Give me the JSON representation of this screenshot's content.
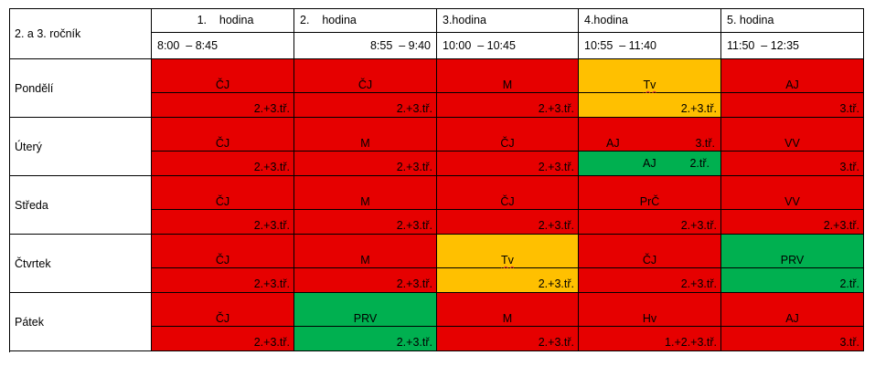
{
  "table": {
    "corner_label": "2. a 3. ročník",
    "periods": [
      {
        "name": "1.    hodina",
        "time": "8:00  – 8:45",
        "name_align": "center",
        "time_align": "left"
      },
      {
        "name": "2.    hodina",
        "time": "8:55  – 9:40",
        "name_align": "left",
        "time_align": "right"
      },
      {
        "name": "3.hodina",
        "time": "10:00  – 10:45",
        "name_align": "left",
        "time_align": "left"
      },
      {
        "name": "4.hodina",
        "time": "10:55  – 11:40",
        "name_align": "left",
        "time_align": "left"
      },
      {
        "name": "5. hodina",
        "time": "11:50  – 12:35",
        "name_align": "left",
        "time_align": "left"
      }
    ],
    "days": [
      {
        "name": "Pondělí",
        "lessons": [
          {
            "subject": "ČJ",
            "class": "2.+3.tř.",
            "subject_color": "red",
            "class_color": "red"
          },
          {
            "subject": "ČJ",
            "class": "2.+3.tř.",
            "subject_color": "red",
            "class_color": "red"
          },
          {
            "subject": "M",
            "class": "2.+3.tř.",
            "subject_color": "red",
            "class_color": "red"
          },
          {
            "subject": "Tv",
            "class": "2.+3.tř.",
            "subject_color": "yellow",
            "class_color": "yellow",
            "spell": true
          },
          {
            "subject": "AJ",
            "class": "3.tř.",
            "subject_color": "red",
            "class_color": "red"
          }
        ]
      },
      {
        "name": "Úterý",
        "lessons": [
          {
            "subject": "ČJ",
            "class": "2.+3.tř.",
            "subject_color": "red",
            "class_color": "red"
          },
          {
            "subject": "M",
            "class": "2.+3.tř.",
            "subject_color": "red",
            "class_color": "red"
          },
          {
            "subject": "ČJ",
            "class": "2.+3.tř.",
            "subject_color": "red",
            "class_color": "red"
          },
          {
            "subject": "AJ",
            "subject_class": "3.tř.",
            "class_subject": "AJ",
            "class": "2.tř.",
            "subject_color": "red",
            "class_color": "green",
            "split": true
          },
          {
            "subject": "VV",
            "class": "3.tř.",
            "subject_color": "red",
            "class_color": "red"
          }
        ]
      },
      {
        "name": "Středa",
        "lessons": [
          {
            "subject": "ČJ",
            "class": "2.+3.tř.",
            "subject_color": "red",
            "class_color": "red"
          },
          {
            "subject": "M",
            "class": "2.+3.tř.",
            "subject_color": "red",
            "class_color": "red"
          },
          {
            "subject": "ČJ",
            "class": "2.+3.tř.",
            "subject_color": "red",
            "class_color": "red"
          },
          {
            "subject": "PrČ",
            "class": "2.+3.tř.",
            "subject_color": "red",
            "class_color": "red"
          },
          {
            "subject": "VV",
            "class": "2.+3.tř.",
            "subject_color": "red",
            "class_color": "red"
          }
        ]
      },
      {
        "name": "Čtvrtek",
        "lessons": [
          {
            "subject": "ČJ",
            "class": "2.+3.tř.",
            "subject_color": "red",
            "class_color": "red"
          },
          {
            "subject": "M",
            "class": "2.+3.tř.",
            "subject_color": "red",
            "class_color": "red"
          },
          {
            "subject": "Tv",
            "class": "2.+3.tř.",
            "subject_color": "yellow",
            "class_color": "yellow",
            "spell": true
          },
          {
            "subject": "ČJ",
            "class": "2.+3.tř.",
            "subject_color": "red",
            "class_color": "red"
          },
          {
            "subject": "PRV",
            "class": "2.tř.",
            "subject_color": "green",
            "class_color": "green"
          }
        ]
      },
      {
        "name": "Pátek",
        "lessons": [
          {
            "subject": "ČJ",
            "class": "2.+3.tř.",
            "subject_color": "red",
            "class_color": "red"
          },
          {
            "subject": "PRV",
            "class": "2.+3.tř.",
            "subject_color": "green",
            "class_color": "green"
          },
          {
            "subject": "M",
            "class": "2.+3.tř.",
            "subject_color": "red",
            "class_color": "red"
          },
          {
            "subject": "Hv",
            "class": "1.+2.+3.tř.",
            "subject_color": "red",
            "class_color": "red"
          },
          {
            "subject": "AJ",
            "class": "3.tř.",
            "subject_color": "red",
            "class_color": "red"
          }
        ]
      }
    ]
  },
  "colors": {
    "red": "#e60000",
    "yellow": "#ffc000",
    "green": "#00b050",
    "grid": "#000000"
  }
}
